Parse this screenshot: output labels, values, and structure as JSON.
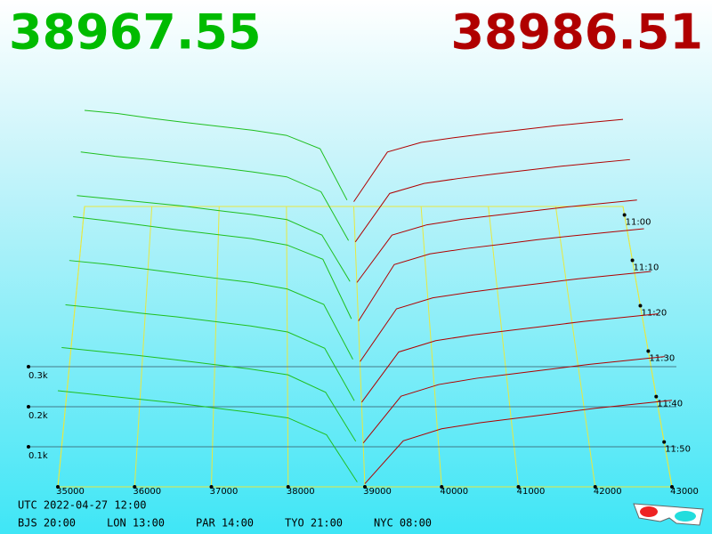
{
  "chart_data": {
    "type": "depth",
    "bid_price": "38967.55",
    "ask_price": "38986.51",
    "bid_color": "#1fbf1f",
    "ask_color": "#b00000",
    "bid_prices": [
      35000,
      35500,
      36000,
      36500,
      37000,
      37500,
      38000,
      38500,
      38900
    ],
    "ask_prices": [
      39000,
      39500,
      40000,
      40500,
      41000,
      41500,
      42000,
      42500,
      43000
    ],
    "snapshots": [
      {
        "bids": [
          300,
          290,
          275,
          262,
          250,
          238,
          222,
          180,
          20
        ],
        "asks": [
          15,
          170,
          200,
          215,
          228,
          240,
          252,
          262,
          272
        ]
      },
      {
        "bids": [
          285,
          272,
          262,
          250,
          238,
          225,
          210,
          165,
          18
        ],
        "asks": [
          14,
          160,
          190,
          205,
          218,
          230,
          242,
          252,
          262
        ]
      },
      {
        "bids": [
          265,
          255,
          245,
          235,
          222,
          210,
          195,
          150,
          15
        ],
        "asks": [
          12,
          150,
          180,
          196,
          208,
          220,
          232,
          242,
          252
        ]
      },
      {
        "bids": [
          310,
          298,
          285,
          272,
          260,
          248,
          230,
          190,
          22
        ],
        "asks": [
          16,
          175,
          205,
          220,
          232,
          245,
          256,
          266,
          276
        ]
      },
      {
        "bids": [
          290,
          280,
          268,
          255,
          242,
          230,
          212,
          170,
          20
        ],
        "asks": [
          14,
          158,
          188,
          203,
          216,
          228,
          240,
          250,
          260
        ]
      },
      {
        "bids": [
          270,
          260,
          248,
          238,
          226,
          214,
          198,
          155,
          16
        ],
        "asks": [
          12,
          145,
          175,
          190,
          202,
          214,
          226,
          236,
          246
        ]
      },
      {
        "bids": [
          255,
          245,
          235,
          224,
          212,
          200,
          185,
          140,
          14
        ],
        "asks": [
          10,
          130,
          160,
          176,
          188,
          200,
          212,
          222,
          232
        ]
      },
      {
        "bids": [
          240,
          230,
          220,
          210,
          198,
          186,
          172,
          130,
          12
        ],
        "asks": [
          8,
          115,
          145,
          160,
          172,
          184,
          196,
          206,
          216
        ]
      }
    ],
    "xlim": [
      35000,
      43000
    ],
    "xticks": [
      35000,
      36000,
      37000,
      38000,
      39000,
      40000,
      41000,
      42000,
      43000
    ],
    "zticks": [
      {
        "value": 100,
        "label": "0.1k"
      },
      {
        "value": 200,
        "label": "0.2k"
      },
      {
        "value": 300,
        "label": "0.3k"
      }
    ],
    "time_ticks": [
      "11:00",
      "11:10",
      "11:20",
      "11:30",
      "11:40",
      "11:50"
    ],
    "footer": [
      "UTC 2022-04-27 12:00",
      "BJS 20:00",
      "LON 13:00",
      "PAR 14:00",
      "TYO 21:00",
      "NYC 08:00"
    ]
  }
}
